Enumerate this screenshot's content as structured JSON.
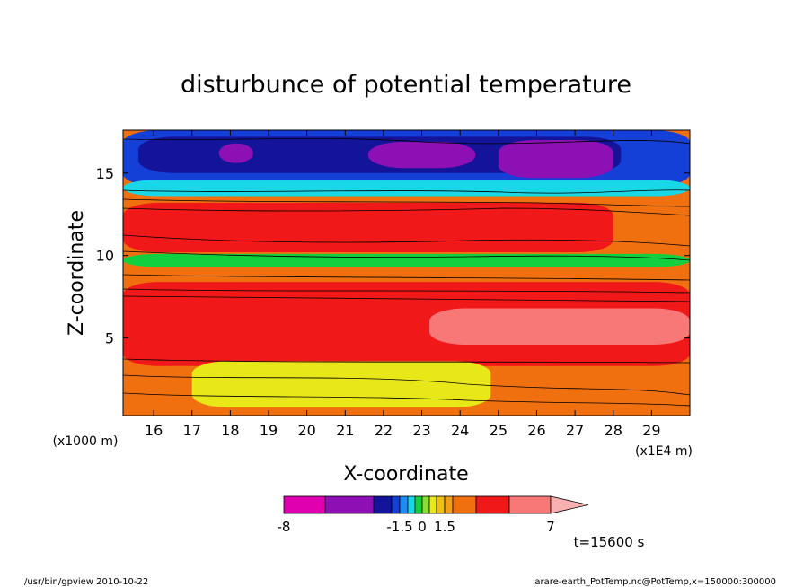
{
  "chart_data": {
    "type": "heatmap",
    "title": "disturbunce of potential temperature",
    "xlabel": "X-coordinate",
    "ylabel": "Z-coordinate",
    "x_unit_left": "(x1000 m)",
    "x_unit_right": "(x1E4 m)",
    "xlim": [
      15.2,
      30.0
    ],
    "ylim": [
      0.3,
      17.6
    ],
    "x_ticks": [
      16,
      17,
      18,
      19,
      20,
      21,
      22,
      23,
      24,
      25,
      26,
      27,
      28,
      29
    ],
    "y_ticks": [
      5,
      10,
      15
    ],
    "time_label": "t=15600 s",
    "footer_left": "/usr/bin/gpview   2010-10-22",
    "footer_right": "arare-earth_PotTemp.nc@PotTemp,x=150000:300000",
    "colorbar": {
      "labels": [
        {
          "text": "-8",
          "at": -8
        },
        {
          "text": "-1.5",
          "at": -1.5
        },
        {
          "text": "0",
          "at": 0
        },
        {
          "text": "1.5",
          "at": 1.5
        },
        {
          "text": "7",
          "at": 7
        }
      ],
      "levels": [
        {
          "value": -8,
          "color": "#e000b0"
        },
        {
          "value": -6,
          "color": "#8c10b4"
        },
        {
          "value": -3,
          "color": "#14149a"
        },
        {
          "value": -2,
          "color": "#1440d8"
        },
        {
          "value": -1.5,
          "color": "#1e8cf0"
        },
        {
          "value": -1,
          "color": "#18d8e8"
        },
        {
          "value": -0.5,
          "color": "#10d040"
        },
        {
          "value": 0,
          "color": "#88e030"
        },
        {
          "value": 0.5,
          "color": "#e8e818"
        },
        {
          "value": 1,
          "color": "#f0c010"
        },
        {
          "value": 1.5,
          "color": "#f0a018"
        },
        {
          "value": 2,
          "color": "#f07010"
        },
        {
          "value": 3,
          "color": "#f01818"
        },
        {
          "value": 5,
          "color": "#f87878"
        },
        {
          "value": 7,
          "color": "#f8b0b0"
        }
      ]
    },
    "regions": [
      {
        "name": "top-blue-layer",
        "color": "#1440d8",
        "y": [
          14.2,
          17.6
        ],
        "x": [
          15.2,
          30
        ]
      },
      {
        "name": "upper-dark-core",
        "color": "#14149a",
        "y": [
          15.0,
          17.2
        ],
        "x": [
          15.6,
          28.2
        ]
      },
      {
        "name": "violet-pool-1",
        "color": "#8c10b4",
        "y": [
          15.6,
          16.8
        ],
        "x": [
          17.7,
          18.6
        ]
      },
      {
        "name": "violet-pool-2",
        "color": "#8c10b4",
        "y": [
          15.3,
          16.9
        ],
        "x": [
          21.6,
          24.4
        ]
      },
      {
        "name": "violet-pool-3",
        "color": "#8c10b4",
        "y": [
          14.7,
          17.0
        ],
        "x": [
          25.0,
          28.0
        ]
      },
      {
        "name": "cyan-band",
        "color": "#18d8e8",
        "y": [
          13.6,
          14.6
        ],
        "x": [
          15.2,
          30
        ]
      },
      {
        "name": "warm-upper-band",
        "color": "#f01818",
        "y": [
          10.2,
          13.2
        ],
        "x": [
          15.2,
          28
        ]
      },
      {
        "name": "green-band",
        "color": "#10d040",
        "y": [
          9.3,
          10.1
        ],
        "x": [
          15.2,
          30
        ]
      },
      {
        "name": "mid-warm-band",
        "color": "#f01818",
        "y": [
          3.3,
          8.4
        ],
        "x": [
          15.2,
          30
        ]
      },
      {
        "name": "pink-core",
        "color": "#f87878",
        "y": [
          4.6,
          6.8
        ],
        "x": [
          23.2,
          30
        ]
      },
      {
        "name": "lower-orange-band",
        "color": "#f07010",
        "y": [
          0.3,
          3.3
        ],
        "x": [
          15.2,
          30
        ]
      },
      {
        "name": "yellow-patches",
        "color": "#e8e818",
        "y": [
          0.8,
          3.6
        ],
        "x": [
          17.0,
          24.8
        ]
      }
    ]
  }
}
